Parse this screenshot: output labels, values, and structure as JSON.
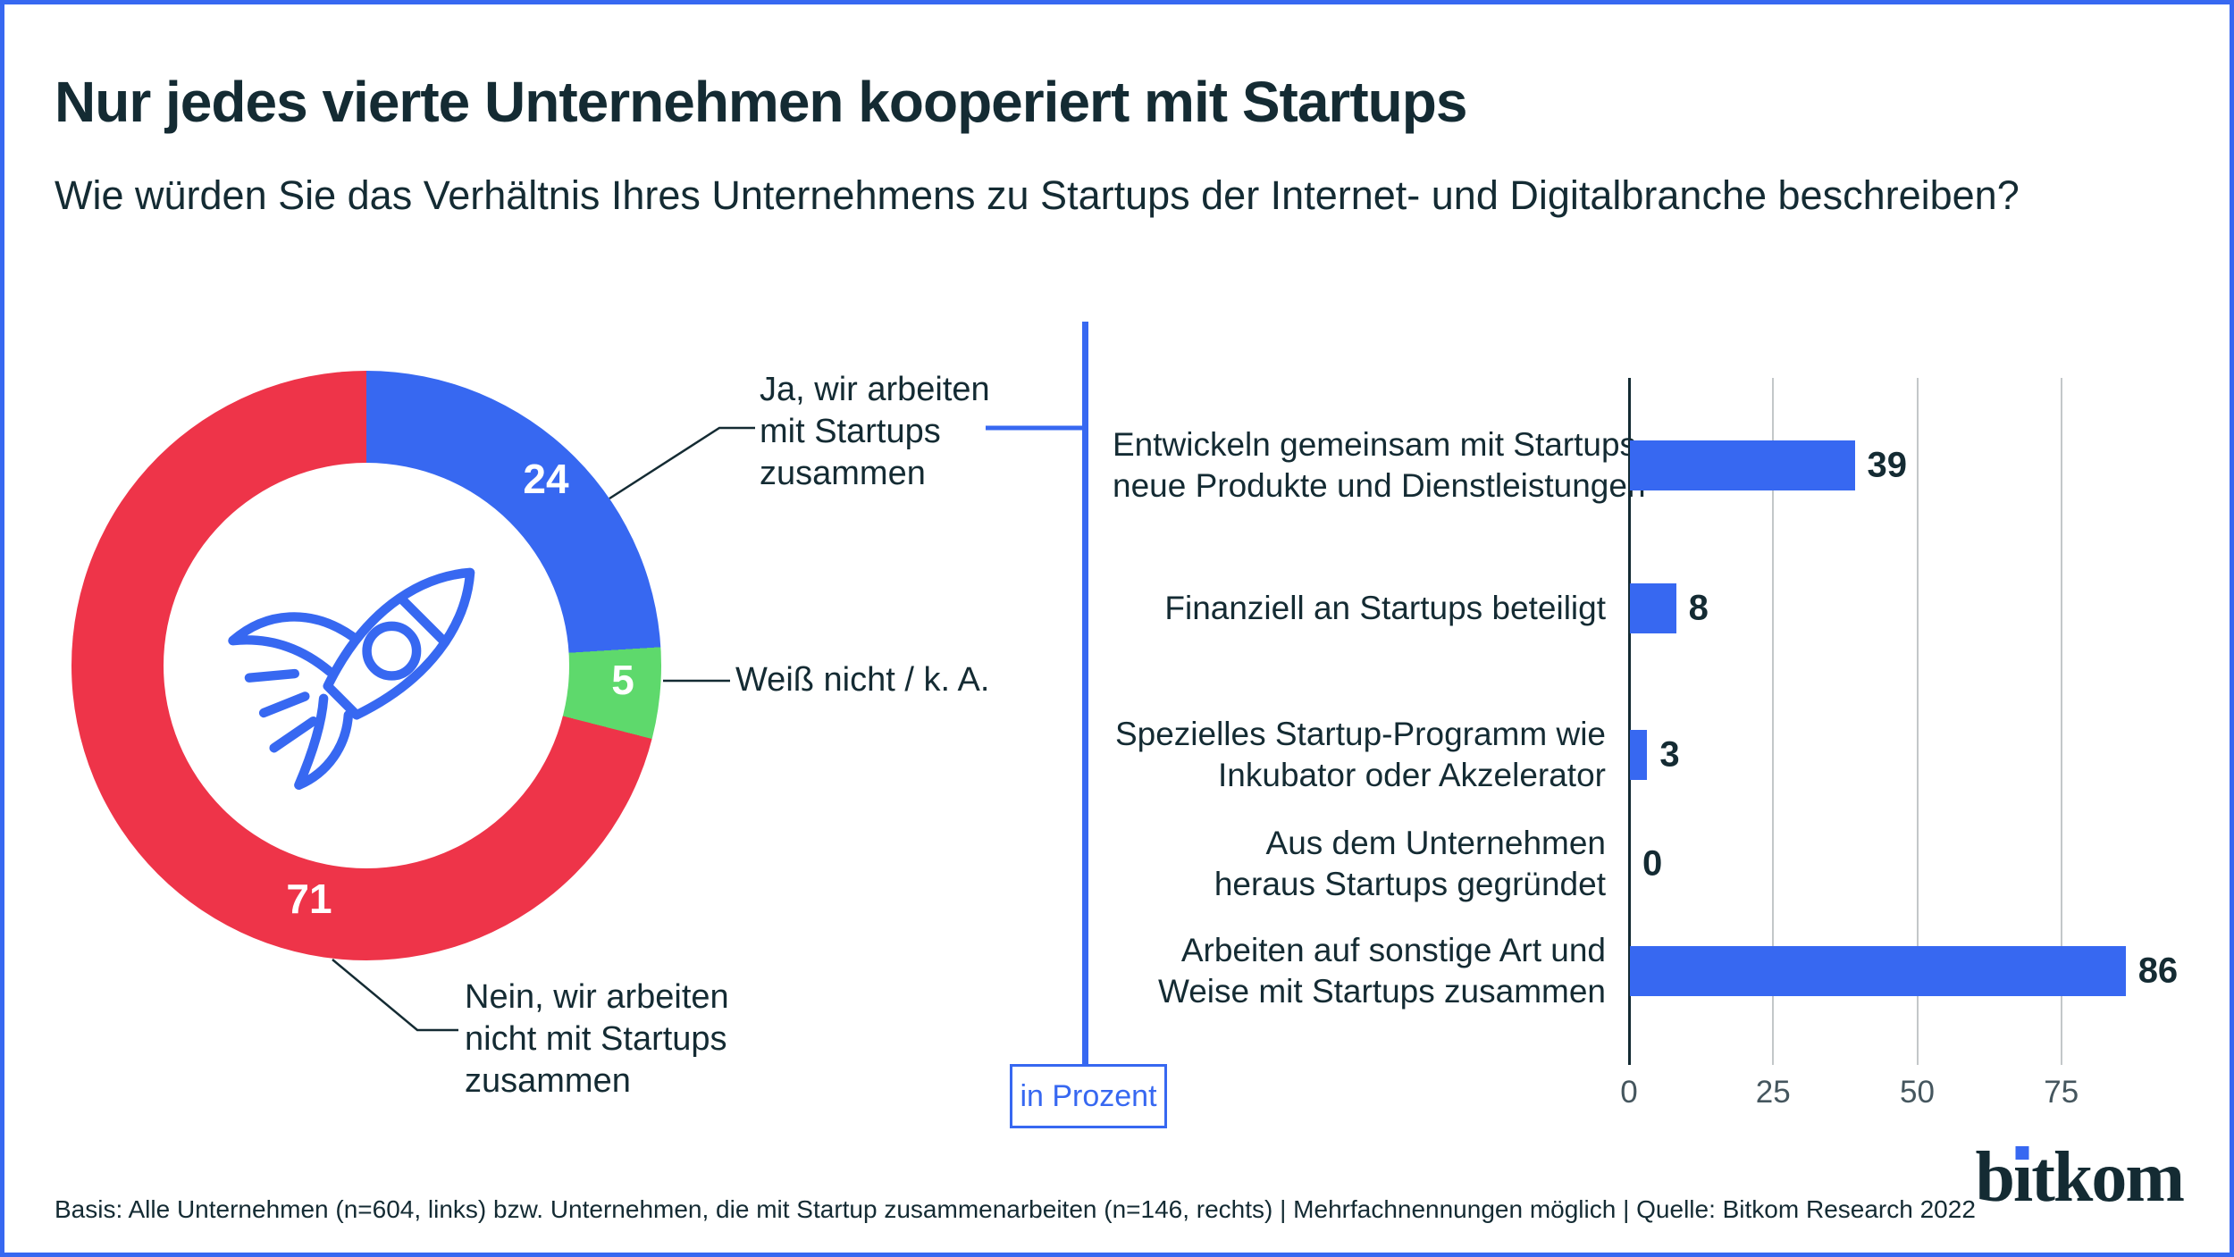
{
  "page": {
    "title": "Nur jedes vierte Unternehmen kooperiert mit Startups",
    "subtitle": "Wie würden Sie das Verhältnis Ihres Unternehmens zu Startups der Internet- und Digitalbranche beschreiben?",
    "unit_label": "in Prozent",
    "footer": "Basis: Alle Unternehmen (n=604, links)  bzw. Unternehmen, die mit Startup zusammenarbeiten (n=146, rechts) | Mehrfachnennungen möglich | Quelle: Bitkom Research 2022",
    "logo_text": "bitkom"
  },
  "colors": {
    "ink": "#142b33",
    "blue": "#3768f1",
    "red": "#ee3449",
    "green": "#5ed96c",
    "grid": "#c3c7c9",
    "tick_label": "#45565e"
  },
  "chart_data": [
    {
      "type": "pie",
      "subtype": "donut",
      "start_angle_deg": 0,
      "direction": "clockwise",
      "unit": "percent",
      "center_icon": "rocket-icon",
      "segments": [
        {
          "label": "Ja, wir arbeiten mit Startups zusammen",
          "label_lines": [
            "Ja, wir arbeiten",
            "mit Startups",
            "zusammen"
          ],
          "value": 24,
          "color": "#3768f1"
        },
        {
          "label": "Weiß nicht / k. A.",
          "label_lines": [
            "Weiß nicht / k. A."
          ],
          "value": 5,
          "color": "#5ed96c"
        },
        {
          "label": "Nein, wir arbeiten nicht mit Startups zusammen",
          "label_lines": [
            "Nein, wir arbeiten",
            "nicht mit Startups",
            "zusammen"
          ],
          "value": 71,
          "color": "#ee3449"
        }
      ]
    },
    {
      "type": "bar",
      "orientation": "horizontal",
      "bar_color": "#3768f1",
      "unit": "percent",
      "grid": "vertical",
      "legend_position": "none",
      "categories": [
        "Entwickeln gemeinsam mit Startups neue Produkte und Dienstleistungen",
        "Finanziell an Startups beteiligt",
        "Spezielles Startup-Programm wie Inkubator oder Akzelerator",
        "Aus dem Unternehmen heraus Startups gegründet",
        "Arbeiten auf sonstige Art und Weise mit Startups zusammen"
      ],
      "category_lines": [
        [
          "Entwickeln gemeinsam mit Startups",
          "neue Produkte und Dienstleistungen"
        ],
        [
          "Finanziell an Startups beteiligt"
        ],
        [
          "Spezielles Startup-Programm wie",
          "Inkubator oder Akzelerator"
        ],
        [
          "Aus dem Unternehmen",
          "heraus Startups gegründet"
        ],
        [
          "Arbeiten auf sonstige Art und",
          "Weise mit Startups zusammen"
        ]
      ],
      "values": [
        39,
        8,
        3,
        0,
        86
      ],
      "xticks": [
        0,
        25,
        50,
        75
      ],
      "xlim": [
        0,
        90
      ]
    }
  ]
}
